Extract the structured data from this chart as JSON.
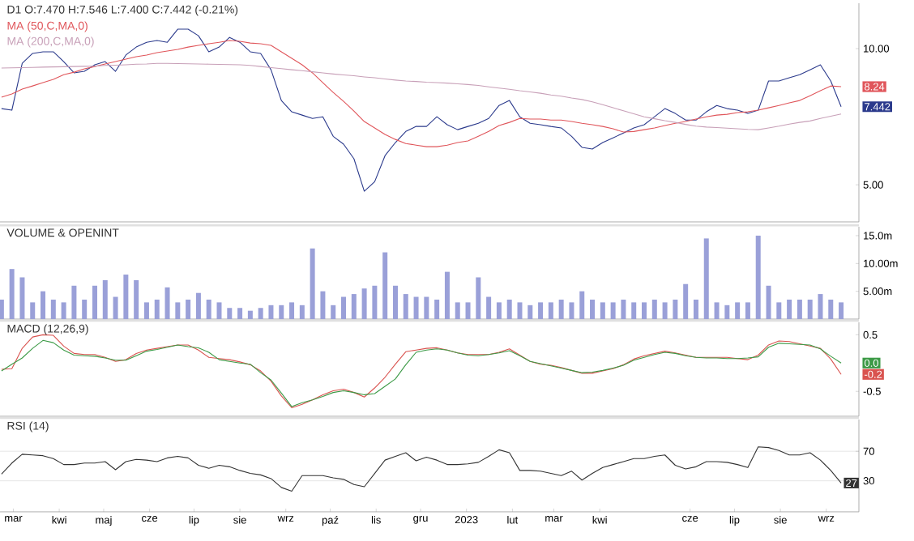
{
  "chart_data": [
    {
      "type": "line",
      "title": "D1 O:7.470 H:7.546 L:7.400 C:7.442 (-0.21%)",
      "log": "y",
      "legend": "top left",
      "tick_labels": "y",
      "xlim": [
        "2022-02-20",
        "2023-09-23"
      ],
      "ylim": [
        4.14,
        12.6
      ],
      "yticks": [
        {
          "value": 5,
          "label": "5.00"
        },
        {
          "value": 10,
          "label": "10.00"
        }
      ],
      "x": [
        "2022-02-21",
        "2022-02-28",
        "2022-03-07",
        "2022-03-14",
        "2022-03-21",
        "2022-03-28",
        "2022-04-04",
        "2022-04-11",
        "2022-04-18",
        "2022-04-25",
        "2022-05-02",
        "2022-05-09",
        "2022-05-16",
        "2022-05-23",
        "2022-05-30",
        "2022-06-06",
        "2022-06-13",
        "2022-06-20",
        "2022-06-27",
        "2022-07-04",
        "2022-07-11",
        "2022-07-18",
        "2022-07-25",
        "2022-08-01",
        "2022-08-08",
        "2022-08-15",
        "2022-08-22",
        "2022-08-29",
        "2022-09-05",
        "2022-09-12",
        "2022-09-19",
        "2022-09-26",
        "2022-10-03",
        "2022-10-10",
        "2022-10-17",
        "2022-10-24",
        "2022-10-31",
        "2022-11-07",
        "2022-11-14",
        "2022-11-21",
        "2022-11-28",
        "2022-12-05",
        "2022-12-12",
        "2022-12-19",
        "2022-12-26",
        "2023-01-02",
        "2023-01-09",
        "2023-01-16",
        "2023-01-23",
        "2023-01-30",
        "2023-02-06",
        "2023-02-13",
        "2023-02-20",
        "2023-02-27",
        "2023-03-06",
        "2023-03-13",
        "2023-03-20",
        "2023-03-27",
        "2023-04-03",
        "2023-04-10",
        "2023-04-17",
        "2023-04-24",
        "2023-05-01",
        "2023-05-08",
        "2023-05-15",
        "2023-05-22",
        "2023-05-29",
        "2023-06-05",
        "2023-06-12",
        "2023-06-19",
        "2023-06-26",
        "2023-07-03",
        "2023-07-10",
        "2023-07-17",
        "2023-07-24",
        "2023-07-31",
        "2023-08-07",
        "2023-08-14",
        "2023-08-21",
        "2023-08-28",
        "2023-09-04",
        "2023-09-11"
      ],
      "series": [
        {
          "color": "#2b3a8c",
          "values": [
            7.37,
            7.31,
            9.28,
            9.76,
            9.84,
            9.84,
            9.36,
            8.84,
            8.91,
            9.21,
            9.36,
            8.91,
            9.68,
            10.08,
            10.33,
            10.42,
            10.33,
            11.04,
            11.04,
            10.68,
            9.84,
            10.08,
            10.59,
            10.33,
            9.84,
            9.76,
            8.98,
            7.68,
            7.25,
            7.13,
            7.01,
            7.07,
            6.4,
            6.15,
            5.71,
            4.84,
            5.08,
            5.8,
            6.2,
            6.56,
            6.73,
            6.73,
            7.07,
            6.79,
            6.62,
            6.73,
            6.84,
            7.01,
            7.49,
            7.68,
            7.07,
            6.84,
            6.79,
            6.73,
            6.68,
            6.4,
            6.05,
            6.0,
            6.2,
            6.35,
            6.51,
            6.68,
            6.79,
            7.07,
            7.37,
            7.19,
            6.95,
            6.95,
            7.25,
            7.49,
            7.37,
            7.31,
            7.19,
            7.31,
            8.48,
            8.48,
            8.62,
            8.76,
            8.98,
            9.21,
            8.48,
            7.442
          ]
        },
        {
          "name": "MA (50,C,MA,0)",
          "color": "#e0565b",
          "values": [
            7.81,
            7.94,
            8.14,
            8.27,
            8.41,
            8.55,
            8.76,
            8.87,
            9.02,
            9.13,
            9.25,
            9.36,
            9.48,
            9.6,
            9.68,
            9.8,
            9.88,
            9.96,
            10.08,
            10.17,
            10.25,
            10.33,
            10.42,
            10.38,
            10.29,
            10.25,
            10.17,
            9.84,
            9.52,
            9.21,
            8.84,
            8.41,
            8.0,
            7.65,
            7.28,
            6.9,
            6.68,
            6.46,
            6.3,
            6.17,
            6.12,
            6.07,
            6.07,
            6.12,
            6.2,
            6.25,
            6.4,
            6.56,
            6.76,
            6.87,
            7.01,
            6.99,
            6.99,
            6.95,
            6.95,
            6.9,
            6.84,
            6.79,
            6.73,
            6.65,
            6.54,
            6.56,
            6.62,
            6.68,
            6.76,
            6.84,
            6.9,
            6.99,
            7.07,
            7.13,
            7.16,
            7.22,
            7.25,
            7.31,
            7.4,
            7.49,
            7.59,
            7.68,
            7.87,
            8.07,
            8.27,
            8.24
          ]
        },
        {
          "name": "MA (200,C,MA,0)",
          "color": "#c8a0b8",
          "values": [
            9.06,
            9.07,
            9.08,
            9.09,
            9.1,
            9.11,
            9.12,
            9.13,
            9.14,
            9.15,
            9.18,
            9.19,
            9.21,
            9.24,
            9.25,
            9.28,
            9.28,
            9.27,
            9.26,
            9.25,
            9.24,
            9.23,
            9.22,
            9.21,
            9.18,
            9.13,
            9.08,
            9.03,
            8.98,
            8.94,
            8.89,
            8.84,
            8.79,
            8.75,
            8.71,
            8.66,
            8.62,
            8.57,
            8.52,
            8.48,
            8.46,
            8.43,
            8.41,
            8.39,
            8.36,
            8.33,
            8.29,
            8.23,
            8.18,
            8.13,
            8.07,
            8.02,
            7.97,
            7.9,
            7.85,
            7.78,
            7.72,
            7.63,
            7.52,
            7.4,
            7.29,
            7.18,
            7.07,
            7.0,
            6.93,
            6.87,
            6.8,
            6.74,
            6.71,
            6.69,
            6.67,
            6.65,
            6.63,
            6.62,
            6.68,
            6.74,
            6.81,
            6.87,
            6.92,
            7.01,
            7.09,
            7.17
          ]
        }
      ],
      "annotations": [
        {
          "text": "8.24",
          "x": "2023-09-11",
          "y": 8.24
        },
        {
          "text": "7.442",
          "x": "2023-09-11",
          "y": 7.442
        }
      ]
    },
    {
      "type": "bar",
      "title": "VOLUME & OPENINT",
      "tick_labels": "y",
      "xlim": [
        "2022-02-20",
        "2023-09-23"
      ],
      "ylim": [
        0,
        16.6
      ],
      "yticks": [
        {
          "value": 5,
          "label": "5.00m"
        },
        {
          "value": 10,
          "label": "10.00m"
        },
        {
          "value": 15,
          "label": "15.0m"
        }
      ],
      "x": [
        "2022-02-21",
        "2022-02-28",
        "2022-03-07",
        "2022-03-14",
        "2022-03-21",
        "2022-03-28",
        "2022-04-04",
        "2022-04-11",
        "2022-04-18",
        "2022-04-25",
        "2022-05-02",
        "2022-05-09",
        "2022-05-16",
        "2022-05-23",
        "2022-05-30",
        "2022-06-06",
        "2022-06-13",
        "2022-06-20",
        "2022-06-27",
        "2022-07-04",
        "2022-07-11",
        "2022-07-18",
        "2022-07-25",
        "2022-08-01",
        "2022-08-08",
        "2022-08-15",
        "2022-08-22",
        "2022-08-29",
        "2022-09-05",
        "2022-09-12",
        "2022-09-19",
        "2022-09-26",
        "2022-10-03",
        "2022-10-10",
        "2022-10-17",
        "2022-10-24",
        "2022-10-31",
        "2022-11-07",
        "2022-11-14",
        "2022-11-21",
        "2022-11-28",
        "2022-12-05",
        "2022-12-12",
        "2022-12-19",
        "2022-12-26",
        "2023-01-02",
        "2023-01-09",
        "2023-01-16",
        "2023-01-23",
        "2023-01-30",
        "2023-02-06",
        "2023-02-13",
        "2023-02-20",
        "2023-02-27",
        "2023-03-06",
        "2023-03-13",
        "2023-03-20",
        "2023-03-27",
        "2023-04-03",
        "2023-04-10",
        "2023-04-17",
        "2023-04-24",
        "2023-05-01",
        "2023-05-08",
        "2023-05-15",
        "2023-05-22",
        "2023-05-29",
        "2023-06-05",
        "2023-06-12",
        "2023-06-19",
        "2023-06-26",
        "2023-07-03",
        "2023-07-10",
        "2023-07-17",
        "2023-07-24",
        "2023-07-31",
        "2023-08-07",
        "2023-08-14",
        "2023-08-21",
        "2023-08-28",
        "2023-09-04",
        "2023-09-11"
      ],
      "series": [
        {
          "color": "#9aa0d8",
          "values": [
            3.5,
            9,
            7.5,
            3,
            5,
            3.5,
            3,
            6,
            3.5,
            6,
            7,
            4,
            8,
            7,
            3,
            3.5,
            5.7,
            3,
            3.5,
            4.7,
            3.5,
            3,
            2,
            2,
            1.5,
            2,
            2.5,
            2.5,
            3,
            2.5,
            12.7,
            5,
            2.5,
            4,
            4.5,
            5.5,
            6,
            12,
            6,
            4.5,
            4,
            4,
            3.5,
            8.5,
            3,
            3,
            7.5,
            4,
            3,
            3.5,
            3,
            2.5,
            3,
            3,
            3.5,
            3,
            5,
            3.5,
            3,
            3,
            3.5,
            3,
            3,
            3.5,
            3,
            3.5,
            6.3,
            3.5,
            14.5,
            3,
            2.5,
            3,
            3,
            15,
            6,
            3,
            3.5,
            3.5,
            3.5,
            4.5,
            3.5,
            3
          ]
        }
      ]
    },
    {
      "type": "line",
      "title": "MACD (12,26,9)",
      "tick_labels": "y",
      "xlim": [
        "2022-02-20",
        "2023-09-23"
      ],
      "ylim": [
        -0.94,
        0.72
      ],
      "yticks": [
        0.5,
        -0.5
      ],
      "x": [
        "2022-02-21",
        "2022-02-28",
        "2022-03-07",
        "2022-03-14",
        "2022-03-21",
        "2022-03-28",
        "2022-04-04",
        "2022-04-11",
        "2022-04-18",
        "2022-04-25",
        "2022-05-02",
        "2022-05-09",
        "2022-05-16",
        "2022-05-23",
        "2022-05-30",
        "2022-06-06",
        "2022-06-13",
        "2022-06-20",
        "2022-06-27",
        "2022-07-04",
        "2022-07-11",
        "2022-07-18",
        "2022-07-25",
        "2022-08-01",
        "2022-08-08",
        "2022-08-15",
        "2022-08-22",
        "2022-08-29",
        "2022-09-05",
        "2022-09-12",
        "2022-09-19",
        "2022-09-26",
        "2022-10-03",
        "2022-10-10",
        "2022-10-17",
        "2022-10-24",
        "2022-10-31",
        "2022-11-07",
        "2022-11-14",
        "2022-11-21",
        "2022-11-28",
        "2022-12-05",
        "2022-12-12",
        "2022-12-19",
        "2022-12-26",
        "2023-01-02",
        "2023-01-09",
        "2023-01-16",
        "2023-01-23",
        "2023-01-30",
        "2023-02-06",
        "2023-02-13",
        "2023-02-20",
        "2023-02-27",
        "2023-03-06",
        "2023-03-13",
        "2023-03-20",
        "2023-03-27",
        "2023-04-03",
        "2023-04-10",
        "2023-04-17",
        "2023-04-24",
        "2023-05-01",
        "2023-05-08",
        "2023-05-15",
        "2023-05-22",
        "2023-05-29",
        "2023-06-05",
        "2023-06-12",
        "2023-06-19",
        "2023-06-26",
        "2023-07-03",
        "2023-07-10",
        "2023-07-17",
        "2023-07-24",
        "2023-07-31",
        "2023-08-07",
        "2023-08-14",
        "2023-08-21",
        "2023-08-28",
        "2023-09-04",
        "2023-09-11"
      ],
      "series": [
        {
          "color": "#d9534f",
          "values": [
            -0.11,
            -0.1,
            0.26,
            0.46,
            0.5,
            0.49,
            0.3,
            0.17,
            0.15,
            0.15,
            0.1,
            0.03,
            0.06,
            0.17,
            0.23,
            0.26,
            0.29,
            0.32,
            0.32,
            0.23,
            0.1,
            0.08,
            0.06,
            0.02,
            -0.03,
            -0.14,
            -0.32,
            -0.58,
            -0.79,
            -0.73,
            -0.65,
            -0.56,
            -0.49,
            -0.46,
            -0.52,
            -0.6,
            -0.44,
            -0.25,
            -0.02,
            0.2,
            0.23,
            0.26,
            0.27,
            0.23,
            0.18,
            0.15,
            0.15,
            0.15,
            0.19,
            0.25,
            0.14,
            0.03,
            -0.02,
            -0.04,
            -0.08,
            -0.13,
            -0.18,
            -0.18,
            -0.14,
            -0.1,
            -0.03,
            0.07,
            0.13,
            0.17,
            0.21,
            0.18,
            0.14,
            0.1,
            0.1,
            0.1,
            0.1,
            0.08,
            0.06,
            0.14,
            0.32,
            0.39,
            0.38,
            0.34,
            0.3,
            0.26,
            0.07,
            -0.2
          ]
        },
        {
          "color": "#3c9a46",
          "values": [
            -0.14,
            -0.02,
            0.09,
            0.26,
            0.4,
            0.36,
            0.23,
            0.14,
            0.13,
            0.12,
            0.09,
            0.05,
            0.05,
            0.13,
            0.21,
            0.24,
            0.28,
            0.32,
            0.29,
            0.27,
            0.19,
            0.06,
            0.03,
            0.0,
            -0.02,
            -0.17,
            -0.3,
            -0.53,
            -0.77,
            -0.7,
            -0.65,
            -0.59,
            -0.52,
            -0.49,
            -0.52,
            -0.56,
            -0.54,
            -0.41,
            -0.28,
            -0.03,
            0.19,
            0.23,
            0.25,
            0.23,
            0.18,
            0.14,
            0.13,
            0.15,
            0.18,
            0.22,
            0.13,
            0.03,
            -0.01,
            -0.05,
            -0.09,
            -0.13,
            -0.17,
            -0.16,
            -0.13,
            -0.09,
            -0.04,
            0.05,
            0.1,
            0.15,
            0.19,
            0.17,
            0.13,
            0.1,
            0.09,
            0.09,
            0.08,
            0.08,
            0.09,
            0.11,
            0.28,
            0.35,
            0.34,
            0.33,
            0.32,
            0.25,
            0.12,
            0.0
          ]
        }
      ],
      "annotations": [
        {
          "text": "0.0",
          "x": "2023-09-11",
          "y": 0.0
        },
        {
          "text": "-0.2",
          "x": "2023-09-11",
          "y": -0.2
        }
      ]
    },
    {
      "type": "line",
      "title": "RSI (14)",
      "grid": "y",
      "xlim": [
        "2022-02-20",
        "2023-09-23"
      ],
      "ylim": [
        -12,
        113
      ],
      "yticks": [
        70,
        30
      ],
      "xticks": [
        {
          "value": "2022-03-01",
          "label": "mar"
        },
        {
          "value": "2022-04-01",
          "label": "kwi"
        },
        {
          "value": "2022-05-01",
          "label": "maj"
        },
        {
          "value": "2022-06-01",
          "label": "cze"
        },
        {
          "value": "2022-07-01",
          "label": "lip"
        },
        {
          "value": "2022-08-01",
          "label": "sie"
        },
        {
          "value": "2022-09-01",
          "label": "wrz"
        },
        {
          "value": "2022-10-01",
          "label": "paź"
        },
        {
          "value": "2022-11-01",
          "label": "lis"
        },
        {
          "value": "2022-12-01",
          "label": "gru"
        },
        {
          "value": "2023-01-01",
          "label": "2023"
        },
        {
          "value": "2023-02-01",
          "label": "lut"
        },
        {
          "value": "2023-03-01",
          "label": "mar"
        },
        {
          "value": "2023-04-01",
          "label": "kwi"
        },
        {
          "value": "2023-06-01",
          "label": "cze"
        },
        {
          "value": "2023-07-01",
          "label": "lip"
        },
        {
          "value": "2023-08-01",
          "label": "sie"
        },
        {
          "value": "2023-09-01",
          "label": "wrz"
        }
      ],
      "x": [
        "2022-02-21",
        "2022-02-28",
        "2022-03-07",
        "2022-03-14",
        "2022-03-21",
        "2022-03-28",
        "2022-04-04",
        "2022-04-11",
        "2022-04-18",
        "2022-04-25",
        "2022-05-02",
        "2022-05-09",
        "2022-05-16",
        "2022-05-23",
        "2022-05-30",
        "2022-06-06",
        "2022-06-13",
        "2022-06-20",
        "2022-06-27",
        "2022-07-04",
        "2022-07-11",
        "2022-07-18",
        "2022-07-25",
        "2022-08-01",
        "2022-08-08",
        "2022-08-15",
        "2022-08-22",
        "2022-08-29",
        "2022-09-05",
        "2022-09-12",
        "2022-09-19",
        "2022-09-26",
        "2022-10-03",
        "2022-10-10",
        "2022-10-17",
        "2022-10-24",
        "2022-10-31",
        "2022-11-07",
        "2022-11-14",
        "2022-11-21",
        "2022-11-28",
        "2022-12-05",
        "2022-12-12",
        "2022-12-19",
        "2022-12-26",
        "2023-01-02",
        "2023-01-09",
        "2023-01-16",
        "2023-01-23",
        "2023-01-30",
        "2023-02-06",
        "2023-02-13",
        "2023-02-20",
        "2023-02-27",
        "2023-03-06",
        "2023-03-13",
        "2023-03-20",
        "2023-03-27",
        "2023-04-03",
        "2023-04-10",
        "2023-04-17",
        "2023-04-24",
        "2023-05-01",
        "2023-05-08",
        "2023-05-15",
        "2023-05-22",
        "2023-05-29",
        "2023-06-05",
        "2023-06-12",
        "2023-06-19",
        "2023-06-26",
        "2023-07-03",
        "2023-07-10",
        "2023-07-17",
        "2023-07-24",
        "2023-07-31",
        "2023-08-07",
        "2023-08-14",
        "2023-08-21",
        "2023-08-28",
        "2023-09-04",
        "2023-09-11"
      ],
      "series": [
        {
          "color": "#333333",
          "values": [
            39,
            54,
            66,
            65,
            64,
            60,
            52,
            52,
            54,
            54,
            56,
            45,
            56,
            59,
            58,
            56,
            61,
            63,
            61,
            51,
            47,
            51,
            49,
            44,
            40,
            38,
            33,
            21,
            16,
            37,
            37,
            37,
            34,
            32,
            25,
            22,
            40,
            58,
            63,
            68,
            57,
            62,
            58,
            52,
            52,
            53,
            55,
            63,
            72,
            68,
            44,
            44,
            43,
            40,
            37,
            43,
            31,
            40,
            48,
            52,
            56,
            60,
            60,
            63,
            65,
            51,
            46,
            49,
            56,
            56,
            55,
            52,
            48,
            76,
            75,
            71,
            65,
            65,
            68,
            58,
            44,
            27
          ]
        }
      ],
      "annotations": [
        {
          "text": "27",
          "x": "2023-09-11",
          "y": 27
        }
      ]
    }
  ]
}
